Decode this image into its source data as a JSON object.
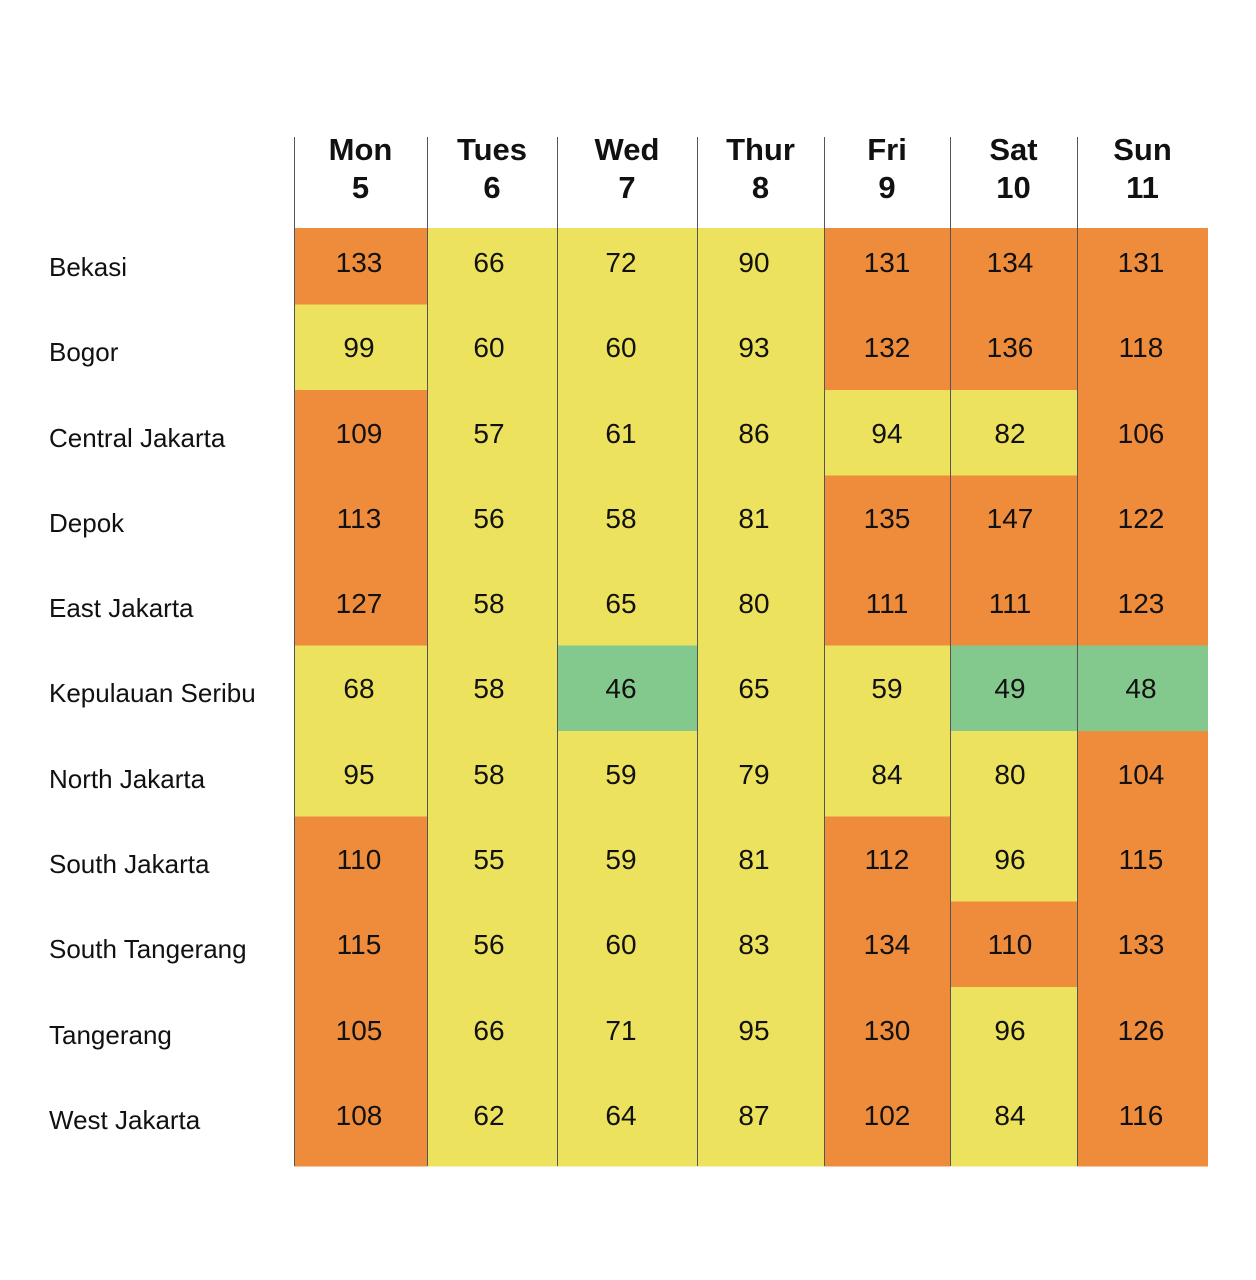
{
  "colors": {
    "green": "#83c98d",
    "yellow": "#ede25d",
    "orange": "#ef8c3b",
    "divider": "#555555",
    "text": "#111111"
  },
  "chart_data": {
    "type": "heatmap",
    "title": "",
    "columns": [
      {
        "day": "Mon",
        "date": "5"
      },
      {
        "day": "Tues",
        "date": "6"
      },
      {
        "day": "Wed",
        "date": "7"
      },
      {
        "day": "Thur",
        "date": "8"
      },
      {
        "day": "Fri",
        "date": "9"
      },
      {
        "day": "Sat",
        "date": "10"
      },
      {
        "day": "Sun",
        "date": "11"
      }
    ],
    "rows": [
      "Bekasi",
      "Bogor",
      "Central Jakarta",
      "Depok",
      "East Jakarta",
      "Kepulauan Seribu",
      "North Jakarta",
      "South Jakarta",
      "South Tangerang",
      "Tangerang",
      "West Jakarta"
    ],
    "values": [
      [
        133,
        66,
        72,
        90,
        131,
        134,
        131
      ],
      [
        99,
        60,
        60,
        93,
        132,
        136,
        118
      ],
      [
        109,
        57,
        61,
        86,
        94,
        82,
        106
      ],
      [
        113,
        56,
        58,
        81,
        135,
        147,
        122
      ],
      [
        127,
        58,
        65,
        80,
        111,
        111,
        123
      ],
      [
        68,
        58,
        46,
        65,
        59,
        49,
        48
      ],
      [
        95,
        58,
        59,
        79,
        84,
        80,
        104
      ],
      [
        110,
        55,
        59,
        81,
        112,
        96,
        115
      ],
      [
        115,
        56,
        60,
        83,
        134,
        110,
        133
      ],
      [
        105,
        66,
        71,
        95,
        130,
        96,
        126
      ],
      [
        108,
        62,
        64,
        87,
        102,
        84,
        116
      ]
    ],
    "color_bands": [
      {
        "max": 50,
        "color": "green"
      },
      {
        "max": 100,
        "color": "yellow"
      },
      {
        "max": 1000,
        "color": "orange"
      }
    ]
  }
}
